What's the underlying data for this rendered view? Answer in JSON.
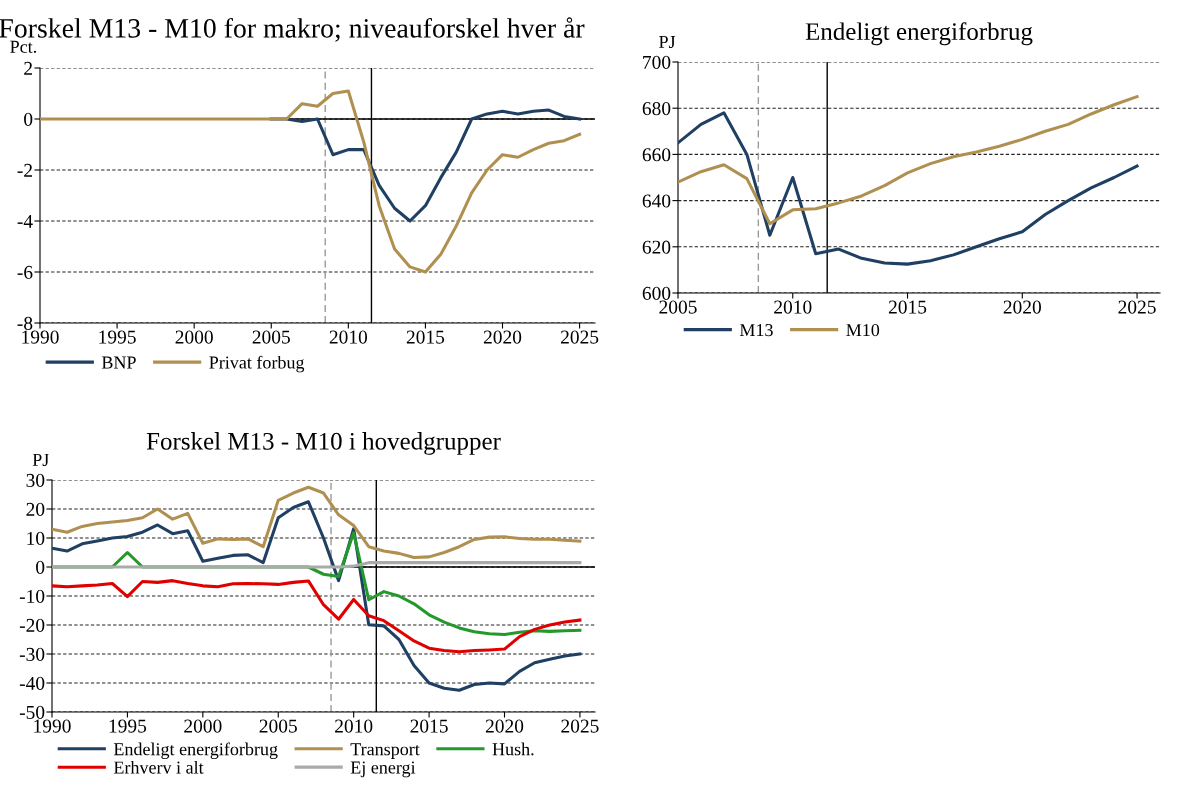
{
  "chart_data": [
    {
      "type": "line",
      "title": "Forskel M13 - M10 for makro; niveauforskel hver år",
      "ylabel": "Pct.",
      "x": [
        1990,
        1991,
        1992,
        1993,
        1994,
        1995,
        1996,
        1997,
        1998,
        1999,
        2000,
        2001,
        2002,
        2003,
        2004,
        2005,
        2006,
        2007,
        2008,
        2009,
        2010,
        2011,
        2012,
        2013,
        2014,
        2015,
        2016,
        2017,
        2018,
        2019,
        2020,
        2021,
        2022,
        2023,
        2024,
        2025
      ],
      "series": [
        {
          "name": "BNP",
          "color": "#1f3f63",
          "values": [
            null,
            null,
            null,
            null,
            null,
            null,
            null,
            null,
            null,
            null,
            null,
            null,
            null,
            null,
            null,
            0,
            0,
            -0.1,
            0,
            -1.4,
            -1.2,
            -1.2,
            -2.6,
            -3.5,
            -4.0,
            -3.4,
            -2.3,
            -1.3,
            0,
            0.2,
            0.3,
            0.2,
            0.3,
            0.35,
            0.1,
            0
          ]
        },
        {
          "name": "Privat forbug",
          "color": "#b09050",
          "values": [
            0,
            0,
            0,
            0,
            0,
            0,
            0,
            0,
            0,
            0,
            0,
            0,
            0,
            0,
            0,
            0,
            0,
            0.6,
            0.5,
            1.0,
            1.1,
            -0.9,
            -3.4,
            -5.1,
            -5.8,
            -6.0,
            -5.3,
            -4.2,
            -2.9,
            -2.0,
            -1.4,
            -1.5,
            -1.2,
            -0.95,
            -0.85,
            -0.6
          ]
        }
      ],
      "xlim": [
        1990,
        2026
      ],
      "xticks": [
        1990,
        1995,
        2000,
        2005,
        2010,
        2015,
        2020,
        2025
      ],
      "ylim": [
        -8,
        2
      ],
      "yticks": [
        -8,
        -6,
        -4,
        -2,
        0,
        2
      ],
      "ref_lines": [
        {
          "axis": "x",
          "value": 2008.5,
          "color": "#999999",
          "line_style": "dashed"
        },
        {
          "axis": "x",
          "value": 2011.5,
          "color": "#000000",
          "line_style": "solid"
        },
        {
          "axis": "y",
          "value": 0,
          "color": "#000000",
          "line_style": "solid"
        }
      ],
      "grid": "y",
      "legend": "bottom",
      "line_style": "solid",
      "marker": "none"
    },
    {
      "type": "line",
      "title": "Endeligt energiforbrug",
      "ylabel": "PJ",
      "x": [
        2005,
        2006,
        2007,
        2008,
        2009,
        2010,
        2011,
        2012,
        2013,
        2014,
        2015,
        2016,
        2017,
        2018,
        2019,
        2020,
        2021,
        2022,
        2023,
        2024,
        2025
      ],
      "series": [
        {
          "name": "M13",
          "color": "#1f3f63",
          "values": [
            665,
            673,
            678,
            660,
            625,
            650,
            617,
            619,
            615,
            613,
            612.5,
            614,
            616.5,
            620,
            623.5,
            626.5,
            634,
            640,
            645.5,
            650,
            655
          ]
        },
        {
          "name": "M10",
          "color": "#b09050",
          "values": [
            648,
            652.5,
            655.5,
            649.5,
            630,
            636,
            636.5,
            639,
            642,
            646.5,
            652,
            656,
            659,
            661,
            663.5,
            666.5,
            670,
            673,
            677.5,
            681.5,
            685
          ]
        }
      ],
      "xlim": [
        2005,
        2026
      ],
      "xticks": [
        2005,
        2010,
        2015,
        2020,
        2025
      ],
      "ylim": [
        600,
        700
      ],
      "yticks": [
        600,
        620,
        640,
        660,
        680,
        700
      ],
      "ref_lines": [
        {
          "axis": "x",
          "value": 2008.5,
          "color": "#999999",
          "line_style": "dashed"
        },
        {
          "axis": "x",
          "value": 2011.5,
          "color": "#000000",
          "line_style": "solid"
        }
      ],
      "grid": "y",
      "legend": "bottom",
      "line_style": "solid",
      "marker": "none"
    },
    {
      "type": "line",
      "title": "Forskel M13 - M10 i hovedgrupper",
      "ylabel": "PJ",
      "x": [
        1990,
        1991,
        1992,
        1993,
        1994,
        1995,
        1996,
        1997,
        1998,
        1999,
        2000,
        2001,
        2002,
        2003,
        2004,
        2005,
        2006,
        2007,
        2008,
        2009,
        2010,
        2011,
        2012,
        2013,
        2014,
        2015,
        2016,
        2017,
        2018,
        2019,
        2020,
        2021,
        2022,
        2023,
        2024,
        2025
      ],
      "series": [
        {
          "name": "Endeligt energiforbrug",
          "color": "#1f3f63",
          "values": [
            6.5,
            5.5,
            8,
            9,
            10,
            10.5,
            12,
            14.5,
            11.5,
            12.5,
            2,
            3,
            4,
            4.2,
            1.5,
            17,
            20.5,
            22.5,
            10,
            -4.7,
            13.2,
            -19.9,
            -20.3,
            -25,
            -34,
            -40,
            -41.8,
            -42.5,
            -40.5,
            -40,
            -40.3,
            -36,
            -33,
            -31.8,
            -30.7,
            -30
          ]
        },
        {
          "name": "Transport",
          "color": "#b09050",
          "values": [
            13,
            12,
            14,
            15,
            15.5,
            16,
            17,
            20,
            16.5,
            18.5,
            8.2,
            9.7,
            9.5,
            9.7,
            7,
            23,
            25.5,
            27.5,
            25.5,
            18,
            14.3,
            7,
            5.5,
            4.7,
            3.3,
            3.5,
            5,
            7,
            9.5,
            10.3,
            10.4,
            9.8,
            9.6,
            9.6,
            9.2,
            8.9
          ]
        },
        {
          "name": "Hush.",
          "color": "#22992a",
          "values": [
            0,
            0,
            0,
            0,
            0,
            5,
            0,
            0,
            0,
            0,
            0,
            0,
            0,
            0,
            0,
            0,
            0,
            0,
            -2.5,
            -3.3,
            11.8,
            -11.3,
            -8.5,
            -10,
            -12.7,
            -16.5,
            -19,
            -21,
            -22.3,
            -23,
            -23.3,
            -22.5,
            -22,
            -22.2,
            -22,
            -21.8
          ]
        },
        {
          "name": "Erhverv i alt",
          "color": "#e00000",
          "values": [
            -6.5,
            -6.8,
            -6.5,
            -6.2,
            -5.7,
            -10.2,
            -5,
            -5.3,
            -4.7,
            -5.7,
            -6.5,
            -6.8,
            -5.8,
            -5.7,
            -5.8,
            -6,
            -5.3,
            -4.8,
            -13,
            -18,
            -11.2,
            -16.8,
            -18.5,
            -22,
            -25.5,
            -28,
            -28.8,
            -29.2,
            -28.8,
            -28.6,
            -28.3,
            -24,
            -21.5,
            -20,
            -19,
            -18.3
          ]
        },
        {
          "name": "Ej energi",
          "color": "#aaaaaa",
          "values": [
            0,
            0,
            0,
            0,
            0,
            0,
            0,
            0,
            0,
            0,
            0,
            0,
            0,
            0,
            0,
            0,
            0,
            0,
            0,
            0,
            0.3,
            1.5,
            1.5,
            1.5,
            1.5,
            1.5,
            1.5,
            1.5,
            1.5,
            1.5,
            1.5,
            1.5,
            1.5,
            1.5,
            1.5,
            1.5
          ]
        }
      ],
      "xlim": [
        1990,
        2026
      ],
      "xticks": [
        1990,
        1995,
        2000,
        2005,
        2010,
        2015,
        2020,
        2025
      ],
      "ylim": [
        -50,
        30
      ],
      "yticks": [
        -50,
        -40,
        -30,
        -20,
        -10,
        0,
        10,
        20,
        30
      ],
      "ref_lines": [
        {
          "axis": "x",
          "value": 2008.5,
          "color": "#999999",
          "line_style": "dashed"
        },
        {
          "axis": "x",
          "value": 2011.5,
          "color": "#000000",
          "line_style": "solid"
        },
        {
          "axis": "y",
          "value": 0,
          "color": "#000000",
          "line_style": "solid"
        }
      ],
      "grid": "y",
      "legend": "bottom",
      "line_style": "solid",
      "marker": "none"
    }
  ]
}
